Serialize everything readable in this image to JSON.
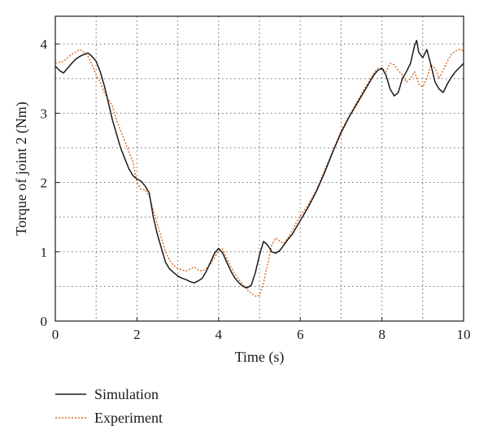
{
  "chart_data": {
    "type": "line",
    "title": "",
    "xlabel": "Time (s)",
    "ylabel": "Torque of joint 2 (Nm)",
    "xlim": [
      0,
      10
    ],
    "ylim": [
      0,
      4.4
    ],
    "xticks": [
      0,
      2,
      4,
      6,
      8,
      10
    ],
    "yticks": [
      0,
      1,
      2,
      3,
      4
    ],
    "grid": true,
    "legend_position": "bottom-left, below plot",
    "series": [
      {
        "name": "Simulation",
        "color": "#1a1a1a",
        "style": "solid",
        "x": [
          0,
          0.1,
          0.2,
          0.3,
          0.4,
          0.5,
          0.6,
          0.7,
          0.8,
          0.9,
          1.0,
          1.1,
          1.2,
          1.3,
          1.4,
          1.5,
          1.6,
          1.7,
          1.8,
          1.9,
          2.0,
          2.1,
          2.2,
          2.3,
          2.4,
          2.5,
          2.6,
          2.7,
          2.8,
          2.9,
          3.0,
          3.1,
          3.2,
          3.3,
          3.4,
          3.5,
          3.6,
          3.7,
          3.8,
          3.9,
          4.0,
          4.1,
          4.2,
          4.3,
          4.4,
          4.5,
          4.6,
          4.7,
          4.8,
          4.9,
          5.0,
          5.1,
          5.2,
          5.3,
          5.4,
          5.5,
          5.6,
          5.7,
          5.8,
          5.9,
          6.0,
          6.2,
          6.4,
          6.6,
          6.8,
          7.0,
          7.2,
          7.4,
          7.6,
          7.8,
          7.9,
          8.0,
          8.1,
          8.2,
          8.3,
          8.4,
          8.5,
          8.6,
          8.7,
          8.8,
          8.85,
          8.9,
          9.0,
          9.1,
          9.2,
          9.3,
          9.4,
          9.5,
          9.6,
          9.7,
          9.8,
          9.9,
          10.0
        ],
        "y": [
          3.68,
          3.62,
          3.58,
          3.65,
          3.72,
          3.78,
          3.82,
          3.85,
          3.87,
          3.82,
          3.75,
          3.6,
          3.4,
          3.15,
          2.9,
          2.7,
          2.5,
          2.35,
          2.2,
          2.1,
          2.05,
          2.02,
          1.95,
          1.85,
          1.5,
          1.25,
          1.05,
          0.85,
          0.75,
          0.7,
          0.65,
          0.62,
          0.6,
          0.57,
          0.55,
          0.58,
          0.62,
          0.72,
          0.85,
          0.98,
          1.05,
          0.98,
          0.85,
          0.72,
          0.62,
          0.55,
          0.5,
          0.48,
          0.52,
          0.7,
          0.95,
          1.15,
          1.1,
          1.0,
          0.98,
          1.02,
          1.1,
          1.18,
          1.25,
          1.35,
          1.45,
          1.65,
          1.88,
          2.15,
          2.45,
          2.72,
          2.95,
          3.15,
          3.35,
          3.55,
          3.62,
          3.65,
          3.55,
          3.35,
          3.25,
          3.3,
          3.5,
          3.6,
          3.72,
          3.98,
          4.05,
          3.88,
          3.8,
          3.92,
          3.7,
          3.45,
          3.35,
          3.3,
          3.42,
          3.52,
          3.6,
          3.66,
          3.72
        ]
      },
      {
        "name": "Experiment",
        "color": "#e0651a",
        "style": "dotted",
        "x": [
          0,
          0.1,
          0.2,
          0.3,
          0.4,
          0.5,
          0.6,
          0.7,
          0.8,
          0.9,
          1.0,
          1.1,
          1.2,
          1.3,
          1.4,
          1.5,
          1.6,
          1.7,
          1.8,
          1.9,
          2.0,
          2.1,
          2.2,
          2.3,
          2.4,
          2.5,
          2.6,
          2.7,
          2.8,
          2.9,
          3.0,
          3.1,
          3.2,
          3.3,
          3.4,
          3.5,
          3.6,
          3.7,
          3.8,
          3.9,
          4.0,
          4.1,
          4.2,
          4.3,
          4.4,
          4.5,
          4.6,
          4.7,
          4.8,
          4.9,
          5.0,
          5.1,
          5.2,
          5.3,
          5.4,
          5.5,
          5.6,
          5.7,
          5.8,
          5.9,
          6.0,
          6.2,
          6.4,
          6.6,
          6.8,
          7.0,
          7.2,
          7.4,
          7.6,
          7.8,
          7.9,
          8.0,
          8.1,
          8.2,
          8.3,
          8.4,
          8.5,
          8.6,
          8.7,
          8.8,
          8.9,
          9.0,
          9.1,
          9.2,
          9.3,
          9.4,
          9.5,
          9.6,
          9.7,
          9.8,
          9.9,
          10.0
        ],
        "y": [
          3.72,
          3.74,
          3.75,
          3.8,
          3.85,
          3.88,
          3.92,
          3.88,
          3.82,
          3.7,
          3.55,
          3.45,
          3.3,
          3.2,
          3.1,
          2.9,
          2.75,
          2.6,
          2.45,
          2.3,
          2.0,
          1.9,
          1.9,
          1.8,
          1.6,
          1.4,
          1.2,
          1.0,
          0.88,
          0.8,
          0.76,
          0.74,
          0.72,
          0.75,
          0.78,
          0.74,
          0.72,
          0.76,
          0.82,
          0.92,
          1.02,
          1.04,
          0.9,
          0.78,
          0.68,
          0.6,
          0.52,
          0.45,
          0.4,
          0.36,
          0.37,
          0.55,
          0.82,
          1.1,
          1.2,
          1.15,
          1.12,
          1.2,
          1.3,
          1.42,
          1.52,
          1.68,
          1.9,
          2.18,
          2.46,
          2.75,
          2.96,
          3.18,
          3.38,
          3.58,
          3.65,
          3.65,
          3.6,
          3.72,
          3.7,
          3.62,
          3.55,
          3.45,
          3.5,
          3.6,
          3.42,
          3.38,
          3.5,
          3.7,
          3.65,
          3.5,
          3.62,
          3.75,
          3.85,
          3.9,
          3.92,
          3.9
        ]
      }
    ]
  }
}
